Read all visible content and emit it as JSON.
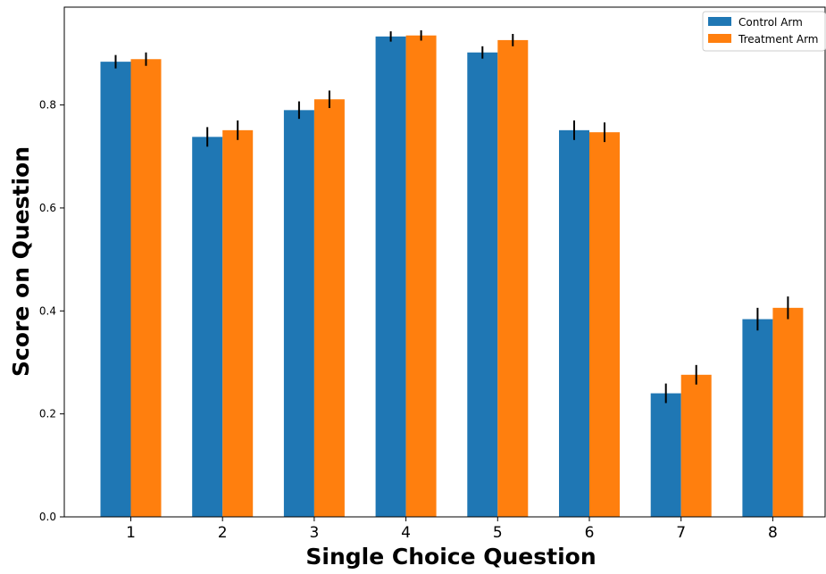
{
  "chart_data": {
    "type": "bar",
    "title": "",
    "xlabel": "Single Choice Question",
    "ylabel": "Score on Question",
    "categories": [
      "1",
      "2",
      "3",
      "4",
      "5",
      "6",
      "7",
      "8"
    ],
    "ylim": [
      0,
      0.99
    ],
    "yticks": [
      0.0,
      0.2,
      0.4,
      0.6,
      0.8
    ],
    "ytick_labels": [
      "0.0",
      "0.2",
      "0.4",
      "0.6",
      "0.8"
    ],
    "grid": false,
    "legend_position": "top-right",
    "series": [
      {
        "name": "Control Arm",
        "color": "#1f77b4",
        "values": [
          0.884,
          0.738,
          0.79,
          0.933,
          0.902,
          0.751,
          0.24,
          0.384
        ],
        "errors": [
          0.013,
          0.019,
          0.017,
          0.01,
          0.012,
          0.019,
          0.019,
          0.022
        ]
      },
      {
        "name": "Treatment Arm",
        "color": "#ff7f0e",
        "values": [
          0.889,
          0.751,
          0.811,
          0.935,
          0.926,
          0.747,
          0.276,
          0.406
        ],
        "errors": [
          0.013,
          0.019,
          0.017,
          0.01,
          0.012,
          0.019,
          0.019,
          0.022
        ]
      }
    ]
  }
}
